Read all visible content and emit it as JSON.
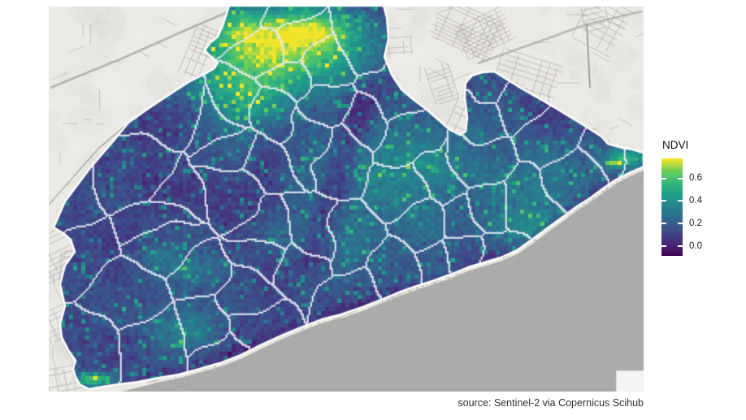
{
  "legend": {
    "title": "NDVI",
    "colormap": "viridis",
    "value_range": [
      -0.09,
      0.78
    ],
    "ticks": [
      {
        "label": "0.6",
        "pos": 0.206
      },
      {
        "label": "0.4",
        "pos": 0.436
      },
      {
        "label": "0.2",
        "pos": 0.669
      },
      {
        "label": "0.0",
        "pos": 0.9
      }
    ]
  },
  "caption": {
    "text": "source: Sentinel-2 via Copernicus Scihub"
  },
  "map": {
    "variable": "NDVI",
    "basemap": "grayscale streets",
    "colors": {
      "land": "#ebe9e6",
      "water": "#ababa9",
      "road": "#a9a7a3",
      "road_major": "#8d8b88",
      "road_fill": "#e9e7e4",
      "coast_dots": "#9a9a98",
      "district_border": "#e9ebf4",
      "region_border": "#ffffff",
      "attribution_box": "#f4f4f2",
      "viridis": [
        "#440154",
        "#482878",
        "#3e4a89",
        "#31688e",
        "#26828e",
        "#1f9e89",
        "#35b779",
        "#6ece58",
        "#fde725"
      ]
    },
    "region_outline": [
      [
        282,
        7
      ],
      [
        472,
        7
      ],
      [
        476,
        22
      ],
      [
        478,
        48
      ],
      [
        473,
        70
      ],
      [
        482,
        92
      ],
      [
        494,
        110
      ],
      [
        508,
        122
      ],
      [
        524,
        134
      ],
      [
        540,
        148
      ],
      [
        554,
        160
      ],
      [
        566,
        166
      ],
      [
        573,
        162
      ],
      [
        575,
        145
      ],
      [
        572,
        120
      ],
      [
        573,
        102
      ],
      [
        581,
        93
      ],
      [
        594,
        89
      ],
      [
        608,
        88
      ],
      [
        642,
        109
      ],
      [
        682,
        132
      ],
      [
        718,
        154
      ],
      [
        740,
        168
      ],
      [
        748,
        177
      ],
      [
        762,
        181
      ],
      [
        778,
        184
      ],
      [
        792,
        188
      ],
      [
        792,
        205
      ],
      [
        776,
        212
      ],
      [
        758,
        221
      ],
      [
        742,
        232
      ],
      [
        726,
        244
      ],
      [
        710,
        254
      ],
      [
        694,
        266
      ],
      [
        676,
        279
      ],
      [
        656,
        294
      ],
      [
        636,
        308
      ],
      [
        616,
        317
      ],
      [
        596,
        323
      ],
      [
        576,
        329
      ],
      [
        554,
        338
      ],
      [
        532,
        346
      ],
      [
        510,
        353
      ],
      [
        488,
        361
      ],
      [
        466,
        370
      ],
      [
        443,
        379
      ],
      [
        420,
        387
      ],
      [
        396,
        393
      ],
      [
        370,
        403
      ],
      [
        346,
        413
      ],
      [
        320,
        425
      ],
      [
        296,
        437
      ],
      [
        270,
        447
      ],
      [
        246,
        454
      ],
      [
        220,
        461
      ],
      [
        196,
        465
      ],
      [
        170,
        470
      ],
      [
        146,
        473
      ],
      [
        126,
        476
      ],
      [
        110,
        479
      ],
      [
        98,
        473
      ],
      [
        93,
        464
      ],
      [
        90,
        454
      ],
      [
        93,
        444
      ],
      [
        84,
        431
      ],
      [
        76,
        415
      ],
      [
        74,
        399
      ],
      [
        80,
        377
      ],
      [
        74,
        350
      ],
      [
        80,
        327
      ],
      [
        92,
        310
      ],
      [
        87,
        295
      ],
      [
        78,
        287
      ],
      [
        66,
        280
      ],
      [
        80,
        248
      ],
      [
        110,
        208
      ],
      [
        140,
        173
      ],
      [
        158,
        151
      ],
      [
        182,
        134
      ],
      [
        206,
        118
      ],
      [
        232,
        101
      ],
      [
        252,
        91
      ],
      [
        264,
        84
      ],
      [
        268,
        77
      ],
      [
        260,
        70
      ],
      [
        252,
        62
      ],
      [
        258,
        53
      ],
      [
        268,
        45
      ],
      [
        275,
        29
      ]
    ],
    "coastline": [
      [
        150,
        482
      ],
      [
        174,
        476
      ],
      [
        198,
        470
      ],
      [
        222,
        465
      ],
      [
        248,
        458
      ],
      [
        272,
        451
      ],
      [
        298,
        441
      ],
      [
        322,
        429
      ],
      [
        348,
        417
      ],
      [
        372,
        407
      ],
      [
        398,
        397
      ],
      [
        422,
        391
      ],
      [
        445,
        383
      ],
      [
        468,
        374
      ],
      [
        490,
        365
      ],
      [
        512,
        357
      ],
      [
        534,
        350
      ],
      [
        556,
        342
      ],
      [
        578,
        333
      ],
      [
        598,
        327
      ],
      [
        618,
        321
      ],
      [
        638,
        312
      ],
      [
        658,
        298
      ],
      [
        678,
        283
      ],
      [
        696,
        270
      ],
      [
        712,
        258
      ],
      [
        728,
        248
      ],
      [
        744,
        236
      ],
      [
        760,
        225
      ],
      [
        778,
        216
      ],
      [
        792,
        210
      ]
    ],
    "ndvi_hotspots": [
      [
        345,
        62,
        100,
        50,
        0.5
      ],
      [
        300,
        122,
        58,
        42,
        0.28
      ],
      [
        388,
        34,
        48,
        26,
        0.3
      ],
      [
        300,
        35,
        40,
        26,
        0.2
      ],
      [
        480,
        215,
        95,
        78,
        0.24
      ],
      [
        645,
        225,
        80,
        55,
        0.15
      ],
      [
        770,
        197,
        26,
        14,
        0.4
      ],
      [
        652,
        280,
        48,
        28,
        0.14
      ],
      [
        410,
        300,
        55,
        45,
        0.12
      ],
      [
        225,
        408,
        42,
        26,
        0.2
      ],
      [
        240,
        332,
        30,
        18,
        0.13
      ],
      [
        115,
        468,
        22,
        8,
        0.5
      ],
      [
        545,
        338,
        30,
        17,
        0.14
      ],
      [
        198,
        316,
        24,
        15,
        0.11
      ]
    ],
    "ndvi_valleys": [
      [
        447,
        125,
        385,
        320,
        16,
        0.2
      ]
    ],
    "district_count": 58
  }
}
